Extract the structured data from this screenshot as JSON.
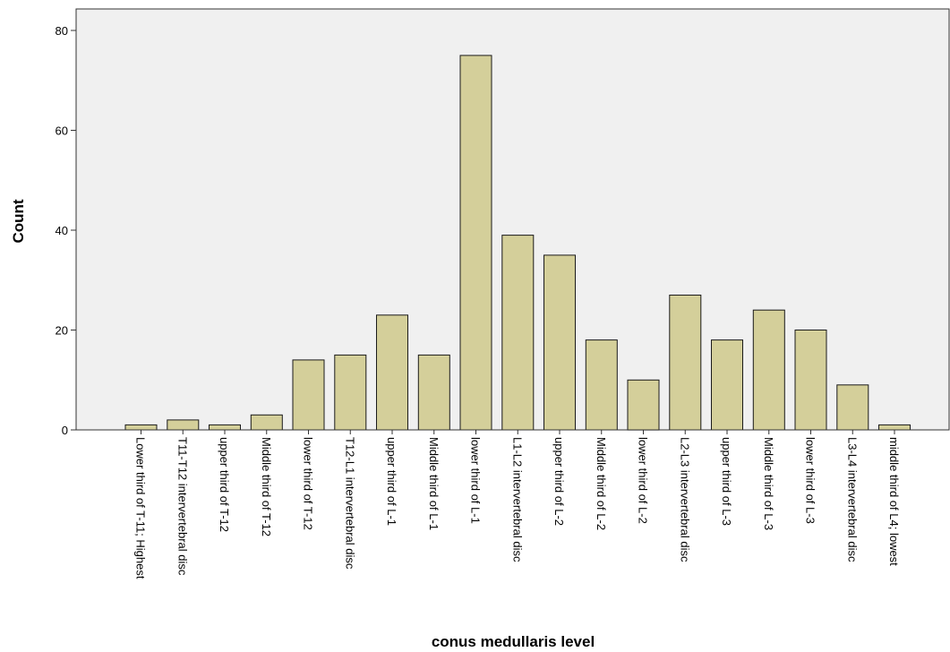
{
  "chart_data": {
    "type": "bar",
    "xlabel": "conus medullaris level",
    "ylabel": "Count",
    "ylim": [
      0,
      80
    ],
    "yticks": [
      "0",
      "20",
      "40",
      "60",
      "80"
    ],
    "grid": false,
    "categories": [
      "Lower third of T-11; Highest",
      "T11-T12 intervertebral disc",
      "upper third of T-12",
      "Middle third of T-12",
      "lower third of T-12",
      "T12-L1 intervertebral disc",
      "upper third of L-1",
      "Middle third of L-1",
      "lower third of L-1",
      "L1-L2 intervertebral disc",
      "upper third of L-2",
      "Middle third of L-2",
      "lower third of L-2",
      "L2-L3 intervertebral disc",
      "upper third of L-3",
      "Middle third of L-3",
      "lower third of L-3",
      "L3-L4 intervertebral disc",
      "middle third of L4; lowest"
    ],
    "values": [
      1,
      2,
      1,
      3,
      14,
      15,
      23,
      15,
      75,
      39,
      35,
      18,
      10,
      27,
      18,
      24,
      20,
      9,
      1
    ],
    "colors": {
      "bar_fill": "#d4cf9a",
      "bar_stroke": "#1a1a1a",
      "plot_background": "#f0f0f0",
      "axis": "#333333"
    }
  }
}
